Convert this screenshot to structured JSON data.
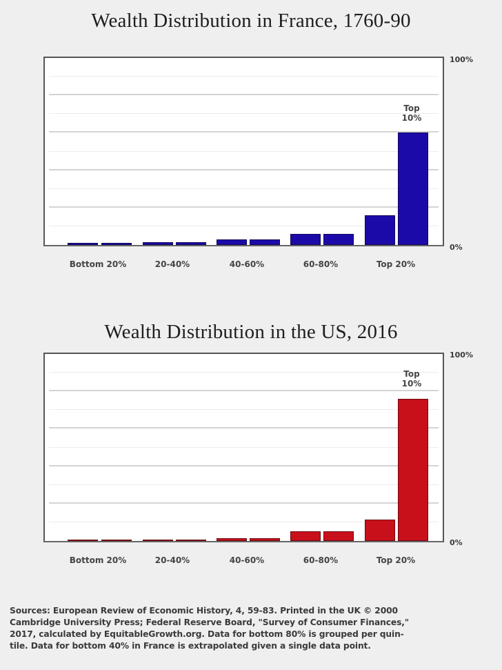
{
  "chart_data": [
    {
      "type": "bar",
      "title": "Wealth Distribution in France, 1760-90",
      "xlabel": "",
      "ylabel": "",
      "ylim": [
        0,
        100
      ],
      "y_tick_labels": [
        "0%",
        "100%"
      ],
      "grid": true,
      "color": "#1c0aa8",
      "categories": [
        "Bottom 20%",
        "20-40%",
        "40-60%",
        "60-80%",
        "Top 20%"
      ],
      "bars": [
        "0-10%",
        "10-20%",
        "20-30%",
        "30-40%",
        "40-50%",
        "50-60%",
        "60-70%",
        "70-80%",
        "80-90%",
        "Top 10%"
      ],
      "values": [
        1,
        1,
        1.5,
        1.5,
        3,
        3,
        6,
        6,
        16,
        60
      ],
      "annotations": [
        {
          "bar": "Top 10%",
          "text": "Top 10%"
        }
      ]
    },
    {
      "type": "bar",
      "title": "Wealth Distribution in the US, 2016",
      "xlabel": "",
      "ylabel": "",
      "ylim": [
        0,
        100
      ],
      "y_tick_labels": [
        "0%",
        "100%"
      ],
      "grid": true,
      "color": "#c8101a",
      "categories": [
        "Bottom 20%",
        "20-40%",
        "40-60%",
        "60-80%",
        "Top 20%"
      ],
      "bars": [
        "0-10%",
        "10-20%",
        "20-30%",
        "30-40%",
        "40-50%",
        "50-60%",
        "60-70%",
        "70-80%",
        "80-90%",
        "Top 10%"
      ],
      "values": [
        0.3,
        0.3,
        0.5,
        0.5,
        1.5,
        1.5,
        5,
        5,
        11.5,
        76
      ],
      "annotations": [
        {
          "bar": "Top 10%",
          "text": "Top 10%"
        }
      ]
    }
  ],
  "france": {
    "title": "Wealth Distribution in France, 1760-90",
    "y_top": "100%",
    "y_bottom": "0%",
    "annotation_line1": "Top",
    "annotation_line2": "10%",
    "x_labels": [
      "Bottom 20%",
      "20-40%",
      "40-60%",
      "60-80%",
      "Top 20%"
    ],
    "bar_color": "#1c0aa8"
  },
  "us": {
    "title": "Wealth Distribution in the US, 2016",
    "y_top": "100%",
    "y_bottom": "0%",
    "annotation_line1": "Top",
    "annotation_line2": "10%",
    "x_labels": [
      "Bottom 20%",
      "20-40%",
      "40-60%",
      "60-80%",
      "Top 20%"
    ],
    "bar_color": "#c8101a"
  },
  "sources": {
    "line1": "Sources: European Review of Economic History, 4, 59-83. Printed in the UK © 2000",
    "line2": "Cambridge University Press; Federal Reserve Board, \"Survey of Consumer Finances,\"",
    "line3": "2017, calculated by EquitableGrowth.org. Data for bottom 80% is grouped per quin-",
    "line4": "tile. Data for bottom 40% in France is extrapolated given a single data point."
  }
}
